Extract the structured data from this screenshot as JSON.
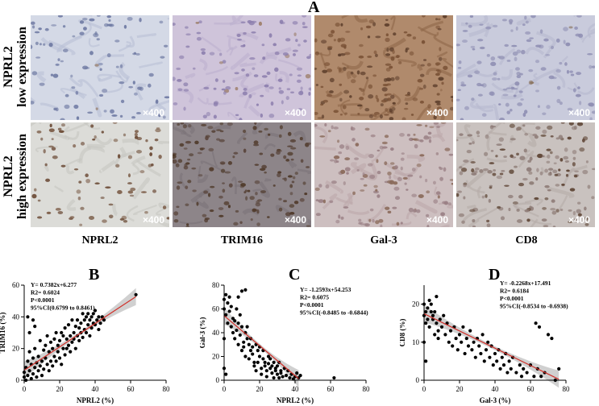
{
  "figure": {
    "panel_a_letter": "A",
    "row_labels": [
      "NPRL2\nlow expression",
      "NPRL2\nhigh expression"
    ],
    "column_labels": [
      "NPRL2",
      "TRIM16",
      "Gal-3",
      "CD8"
    ],
    "magnification": "×400",
    "tiles": [
      {
        "bg": "#d4d9e6",
        "cell": "#6f7aa3",
        "density": 90,
        "stain": "#8c6a4a",
        "stainFrac": 0.05,
        "fiber": "#b9c0d6"
      },
      {
        "bg": "#cfc4da",
        "cell": "#8d7fae",
        "density": 110,
        "stain": "#9a7a63",
        "stainFrac": 0.05,
        "fiber": "#bdb1cf"
      },
      {
        "bg": "#b08a6c",
        "cell": "#5e3f2c",
        "density": 160,
        "stain": "#7a5236",
        "stainFrac": 0.6,
        "fiber": "#8f6849"
      },
      {
        "bg": "#c9cbdc",
        "cell": "#8f8fb3",
        "density": 130,
        "stain": "#8a7560",
        "stainFrac": 0.05,
        "fiber": "#b7b9cf"
      },
      {
        "bg": "#dcdcd8",
        "cell": "#7a5a45",
        "density": 80,
        "stain": "#6b4a35",
        "stainFrac": 0.6,
        "fiber": "#c7c7c1"
      },
      {
        "bg": "#8d8589",
        "cell": "#5a463c",
        "density": 150,
        "stain": "#4e3828",
        "stainFrac": 0.5,
        "fiber": "#7b7378"
      },
      {
        "bg": "#cdbfc0",
        "cell": "#9a8085",
        "density": 150,
        "stain": "#8a6a5a",
        "stainFrac": 0.3,
        "fiber": "#bca8aa"
      },
      {
        "bg": "#c9c2bf",
        "cell": "#8e7c77",
        "density": 170,
        "stain": "#5e4535",
        "stainFrac": 0.35,
        "fiber": "#b6aca8"
      }
    ]
  },
  "chart_data": [
    {
      "type": "scatter",
      "panel": "B",
      "xlabel": "NPRL2 (%)",
      "ylabel": "TRIM16 (%)",
      "xlim": [
        0,
        80
      ],
      "ylim": [
        0,
        60
      ],
      "xticks": [
        0,
        20,
        40,
        60,
        80
      ],
      "yticks": [
        0,
        20,
        40,
        60
      ],
      "stats": [
        "Y= 0.7382x+6.277",
        "R2= 0.6024",
        "P<0.0001",
        "95%CI(0.6799 to 0.8461)"
      ],
      "fit": {
        "slope": 0.7382,
        "intercept": 6.277,
        "x_range": [
          0,
          63
        ]
      },
      "points": [
        [
          0,
          2
        ],
        [
          0,
          5
        ],
        [
          1,
          8
        ],
        [
          1,
          0
        ],
        [
          2,
          12
        ],
        [
          2,
          3
        ],
        [
          3,
          18
        ],
        [
          3,
          6
        ],
        [
          4,
          10
        ],
        [
          4,
          1
        ],
        [
          5,
          14
        ],
        [
          5,
          4
        ],
        [
          6,
          20
        ],
        [
          6,
          8
        ],
        [
          7,
          2
        ],
        [
          7,
          11
        ],
        [
          8,
          15
        ],
        [
          8,
          6
        ],
        [
          9,
          25
        ],
        [
          9,
          9
        ],
        [
          10,
          12
        ],
        [
          10,
          3
        ],
        [
          11,
          19
        ],
        [
          11,
          7
        ],
        [
          12,
          22
        ],
        [
          12,
          14
        ],
        [
          13,
          10
        ],
        [
          13,
          28
        ],
        [
          14,
          18
        ],
        [
          14,
          6
        ],
        [
          15,
          24
        ],
        [
          15,
          12
        ],
        [
          16,
          20
        ],
        [
          16,
          9
        ],
        [
          17,
          15
        ],
        [
          17,
          26
        ],
        [
          18,
          30
        ],
        [
          18,
          12
        ],
        [
          19,
          18
        ],
        [
          19,
          22
        ],
        [
          20,
          25
        ],
        [
          20,
          14
        ],
        [
          21,
          30
        ],
        [
          21,
          10
        ],
        [
          22,
          20
        ],
        [
          22,
          28
        ],
        [
          23,
          16
        ],
        [
          23,
          33
        ],
        [
          24,
          26
        ],
        [
          24,
          20
        ],
        [
          25,
          35
        ],
        [
          25,
          22
        ],
        [
          26,
          28
        ],
        [
          26,
          18
        ],
        [
          27,
          24
        ],
        [
          27,
          38
        ],
        [
          28,
          30
        ],
        [
          28,
          26
        ],
        [
          29,
          34
        ],
        [
          29,
          20
        ],
        [
          30,
          28
        ],
        [
          30,
          38
        ],
        [
          31,
          25
        ],
        [
          31,
          33
        ],
        [
          32,
          36
        ],
        [
          32,
          30
        ],
        [
          33,
          42
        ],
        [
          33,
          27
        ],
        [
          34,
          38
        ],
        [
          34,
          32
        ],
        [
          35,
          30
        ],
        [
          35,
          40
        ],
        [
          36,
          35
        ],
        [
          36,
          42
        ],
        [
          37,
          28
        ],
        [
          37,
          38
        ],
        [
          38,
          40
        ],
        [
          38,
          33
        ],
        [
          39,
          42
        ],
        [
          39,
          36
        ],
        [
          40,
          35
        ],
        [
          40,
          44
        ],
        [
          41,
          38
        ],
        [
          42,
          40
        ],
        [
          42,
          32
        ],
        [
          43,
          36
        ],
        [
          44,
          40
        ],
        [
          45,
          38
        ],
        [
          63,
          54
        ],
        [
          2,
          40
        ],
        [
          5,
          38
        ],
        [
          3,
          30
        ],
        [
          6,
          34
        ]
      ]
    },
    {
      "type": "scatter",
      "panel": "C",
      "xlabel": "NPRL2 (%)",
      "ylabel": "Gal-3 (%)",
      "xlim": [
        0,
        80
      ],
      "ylim": [
        0,
        80
      ],
      "xticks": [
        0,
        20,
        40,
        60,
        80
      ],
      "yticks": [
        0,
        20,
        40,
        60,
        80
      ],
      "stats": [
        "Y= -1.2593x+54.253",
        "R2= 0.6075",
        "P<0.0001",
        "95%CI(-0.8485 to -0.6844)"
      ],
      "fit": {
        "slope": -1.2593,
        "intercept": 54.253,
        "x_range": [
          0,
          42
        ]
      },
      "points": [
        [
          0,
          68
        ],
        [
          1,
          72
        ],
        [
          0,
          60
        ],
        [
          2,
          65
        ],
        [
          1,
          55
        ],
        [
          3,
          70
        ],
        [
          2,
          48
        ],
        [
          4,
          62
        ],
        [
          3,
          58
        ],
        [
          5,
          52
        ],
        [
          4,
          45
        ],
        [
          6,
          50
        ],
        [
          5,
          40
        ],
        [
          7,
          60
        ],
        [
          6,
          35
        ],
        [
          8,
          48
        ],
        [
          7,
          42
        ],
        [
          9,
          38
        ],
        [
          8,
          30
        ],
        [
          10,
          45
        ],
        [
          9,
          55
        ],
        [
          11,
          32
        ],
        [
          10,
          25
        ],
        [
          12,
          40
        ],
        [
          11,
          28
        ],
        [
          13,
          35
        ],
        [
          12,
          20
        ],
        [
          14,
          30
        ],
        [
          13,
          45
        ],
        [
          15,
          25
        ],
        [
          14,
          18
        ],
        [
          16,
          28
        ],
        [
          15,
          35
        ],
        [
          17,
          15
        ],
        [
          16,
          22
        ],
        [
          18,
          30
        ],
        [
          17,
          12
        ],
        [
          19,
          25
        ],
        [
          18,
          8
        ],
        [
          20,
          20
        ],
        [
          19,
          15
        ],
        [
          21,
          10
        ],
        [
          20,
          28
        ],
        [
          22,
          18
        ],
        [
          21,
          5
        ],
        [
          23,
          12
        ],
        [
          22,
          25
        ],
        [
          24,
          8
        ],
        [
          23,
          15
        ],
        [
          25,
          20
        ],
        [
          24,
          3
        ],
        [
          26,
          10
        ],
        [
          25,
          14
        ],
        [
          27,
          6
        ],
        [
          26,
          18
        ],
        [
          28,
          2
        ],
        [
          27,
          12
        ],
        [
          29,
          8
        ],
        [
          28,
          15
        ],
        [
          30,
          5
        ],
        [
          29,
          10
        ],
        [
          31,
          2
        ],
        [
          30,
          12
        ],
        [
          32,
          6
        ],
        [
          31,
          15
        ],
        [
          33,
          3
        ],
        [
          32,
          8
        ],
        [
          34,
          10
        ],
        [
          35,
          4
        ],
        [
          36,
          8
        ],
        [
          37,
          2
        ],
        [
          38,
          5
        ],
        [
          39,
          1
        ],
        [
          40,
          3
        ],
        [
          41,
          6
        ],
        [
          42,
          2
        ],
        [
          43,
          4
        ],
        [
          10,
          75
        ],
        [
          12,
          76
        ],
        [
          8,
          70
        ],
        [
          62,
          2
        ],
        [
          0,
          10
        ],
        [
          1,
          5
        ],
        [
          0,
          35
        ]
      ]
    },
    {
      "type": "scatter",
      "panel": "D",
      "xlabel": "Gal-3 (%)",
      "ylabel": "CD8 (%)",
      "xlim": [
        0,
        80
      ],
      "ylim": [
        0,
        25
      ],
      "xticks": [
        0,
        20,
        40,
        60,
        80
      ],
      "yticks": [
        0,
        10,
        20
      ],
      "stats": [
        "Y= -0.2268x+17.491",
        "R2= 0.6184",
        "P<0.0001",
        "95%CI(-0.8534 to -0.6938)"
      ],
      "fit": {
        "slope": -0.2268,
        "intercept": 17.491,
        "x_range": [
          0,
          76
        ]
      },
      "points": [
        [
          0,
          20
        ],
        [
          1,
          18
        ],
        [
          0,
          17
        ],
        [
          2,
          19
        ],
        [
          1,
          15
        ],
        [
          3,
          21
        ],
        [
          2,
          16
        ],
        [
          4,
          18
        ],
        [
          3,
          14
        ],
        [
          5,
          17
        ],
        [
          4,
          20
        ],
        [
          6,
          12
        ],
        [
          5,
          16
        ],
        [
          7,
          15
        ],
        [
          6,
          18
        ],
        [
          8,
          13
        ],
        [
          7,
          22
        ],
        [
          9,
          16
        ],
        [
          8,
          11
        ],
        [
          10,
          14
        ],
        [
          11,
          17
        ],
        [
          12,
          12
        ],
        [
          13,
          15
        ],
        [
          14,
          10
        ],
        [
          15,
          13
        ],
        [
          16,
          9
        ],
        [
          17,
          14
        ],
        [
          18,
          11
        ],
        [
          19,
          8
        ],
        [
          20,
          12
        ],
        [
          21,
          10
        ],
        [
          22,
          14
        ],
        [
          23,
          7
        ],
        [
          24,
          11
        ],
        [
          25,
          9
        ],
        [
          26,
          13
        ],
        [
          27,
          8
        ],
        [
          28,
          10
        ],
        [
          29,
          6
        ],
        [
          30,
          11
        ],
        [
          31,
          9
        ],
        [
          32,
          7
        ],
        [
          33,
          12
        ],
        [
          34,
          5
        ],
        [
          35,
          8
        ],
        [
          36,
          10
        ],
        [
          37,
          6
        ],
        [
          38,
          9
        ],
        [
          39,
          4
        ],
        [
          40,
          7
        ],
        [
          41,
          5
        ],
        [
          42,
          8
        ],
        [
          43,
          3
        ],
        [
          44,
          6
        ],
        [
          45,
          4
        ],
        [
          46,
          7
        ],
        [
          47,
          2
        ],
        [
          48,
          5
        ],
        [
          49,
          3
        ],
        [
          50,
          6
        ],
        [
          52,
          2
        ],
        [
          54,
          4
        ],
        [
          55,
          1
        ],
        [
          56,
          3
        ],
        [
          58,
          2
        ],
        [
          60,
          4
        ],
        [
          62,
          1
        ],
        [
          64,
          3
        ],
        [
          66,
          1
        ],
        [
          68,
          2
        ],
        [
          70,
          12
        ],
        [
          72,
          11
        ],
        [
          74,
          0
        ],
        [
          76,
          3
        ],
        [
          63,
          15
        ],
        [
          65,
          14
        ],
        [
          0,
          10
        ],
        [
          1,
          5
        ]
      ]
    }
  ]
}
